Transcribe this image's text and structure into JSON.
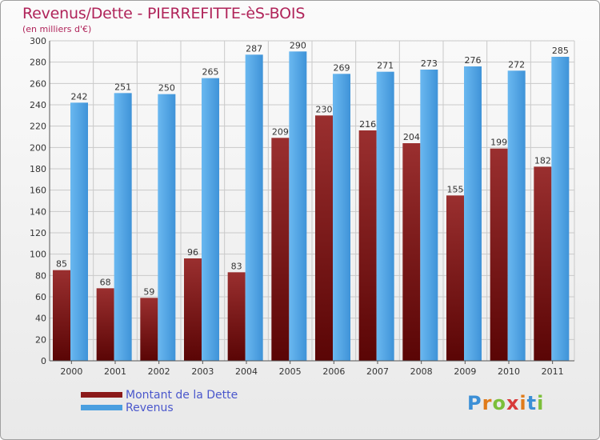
{
  "header": {
    "title": "Revenus/Dette - PIERREFITTE-èS-BOIS",
    "subtitle": "(en milliers d'€)"
  },
  "chart_data": {
    "type": "bar",
    "title": "Revenus/Dette - PIERREFITTE-èS-BOIS",
    "subtitle": "(en milliers d'€)",
    "xlabel": "",
    "ylabel": "",
    "ylim": [
      0,
      300
    ],
    "yticks": [
      0,
      20,
      40,
      60,
      80,
      100,
      120,
      140,
      160,
      180,
      200,
      220,
      240,
      260,
      280,
      300
    ],
    "grid": true,
    "legend_position": "bottom-left",
    "categories": [
      "2000",
      "2001",
      "2002",
      "2003",
      "2004",
      "2005",
      "2006",
      "2007",
      "2008",
      "2009",
      "2010",
      "2011"
    ],
    "series": [
      {
        "name": "Montant de la Dette",
        "color": "#8b1a1a",
        "values": [
          85,
          68,
          59,
          96,
          83,
          209,
          230,
          216,
          204,
          155,
          199,
          182
        ]
      },
      {
        "name": "Revenus",
        "color": "#4a9fe0",
        "values": [
          242,
          251,
          250,
          265,
          287,
          290,
          269,
          271,
          273,
          276,
          272,
          285
        ]
      }
    ]
  },
  "legend": {
    "items": [
      {
        "label": "Montant de la Dette",
        "color": "#8b1a1a"
      },
      {
        "label": "Revenus",
        "color": "#4a9fe0"
      }
    ]
  },
  "logo": {
    "text": "Proxiti",
    "colors": [
      "#3b8fd6",
      "#e07b1a",
      "#7cbf3a",
      "#d83a3a",
      "#e07b1a",
      "#3b8fd6",
      "#7cbf3a"
    ]
  }
}
